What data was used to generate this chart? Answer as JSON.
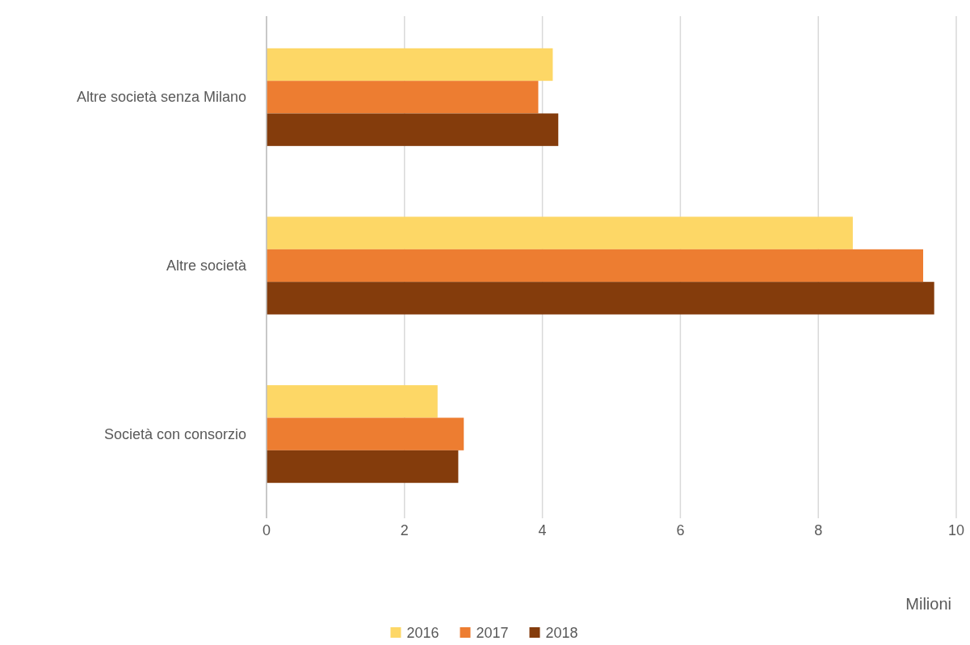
{
  "chart_data": {
    "type": "bar",
    "orientation": "horizontal",
    "categories": [
      "Altre società senza Milano",
      "Altre società",
      "Società con consorzio"
    ],
    "series": [
      {
        "name": "2016",
        "color": "#fdd766",
        "values": [
          4.15,
          8.5,
          2.48
        ]
      },
      {
        "name": "2017",
        "color": "#ed7d31",
        "values": [
          3.94,
          9.52,
          2.86
        ]
      },
      {
        "name": "2018",
        "color": "#843c0c",
        "values": [
          4.23,
          9.68,
          2.78
        ]
      }
    ],
    "xlabel": "Milioni",
    "xlim": [
      0,
      10
    ],
    "xticks": [
      0,
      2,
      4,
      6,
      8,
      10
    ],
    "grid": "x",
    "legend": "bottom"
  }
}
